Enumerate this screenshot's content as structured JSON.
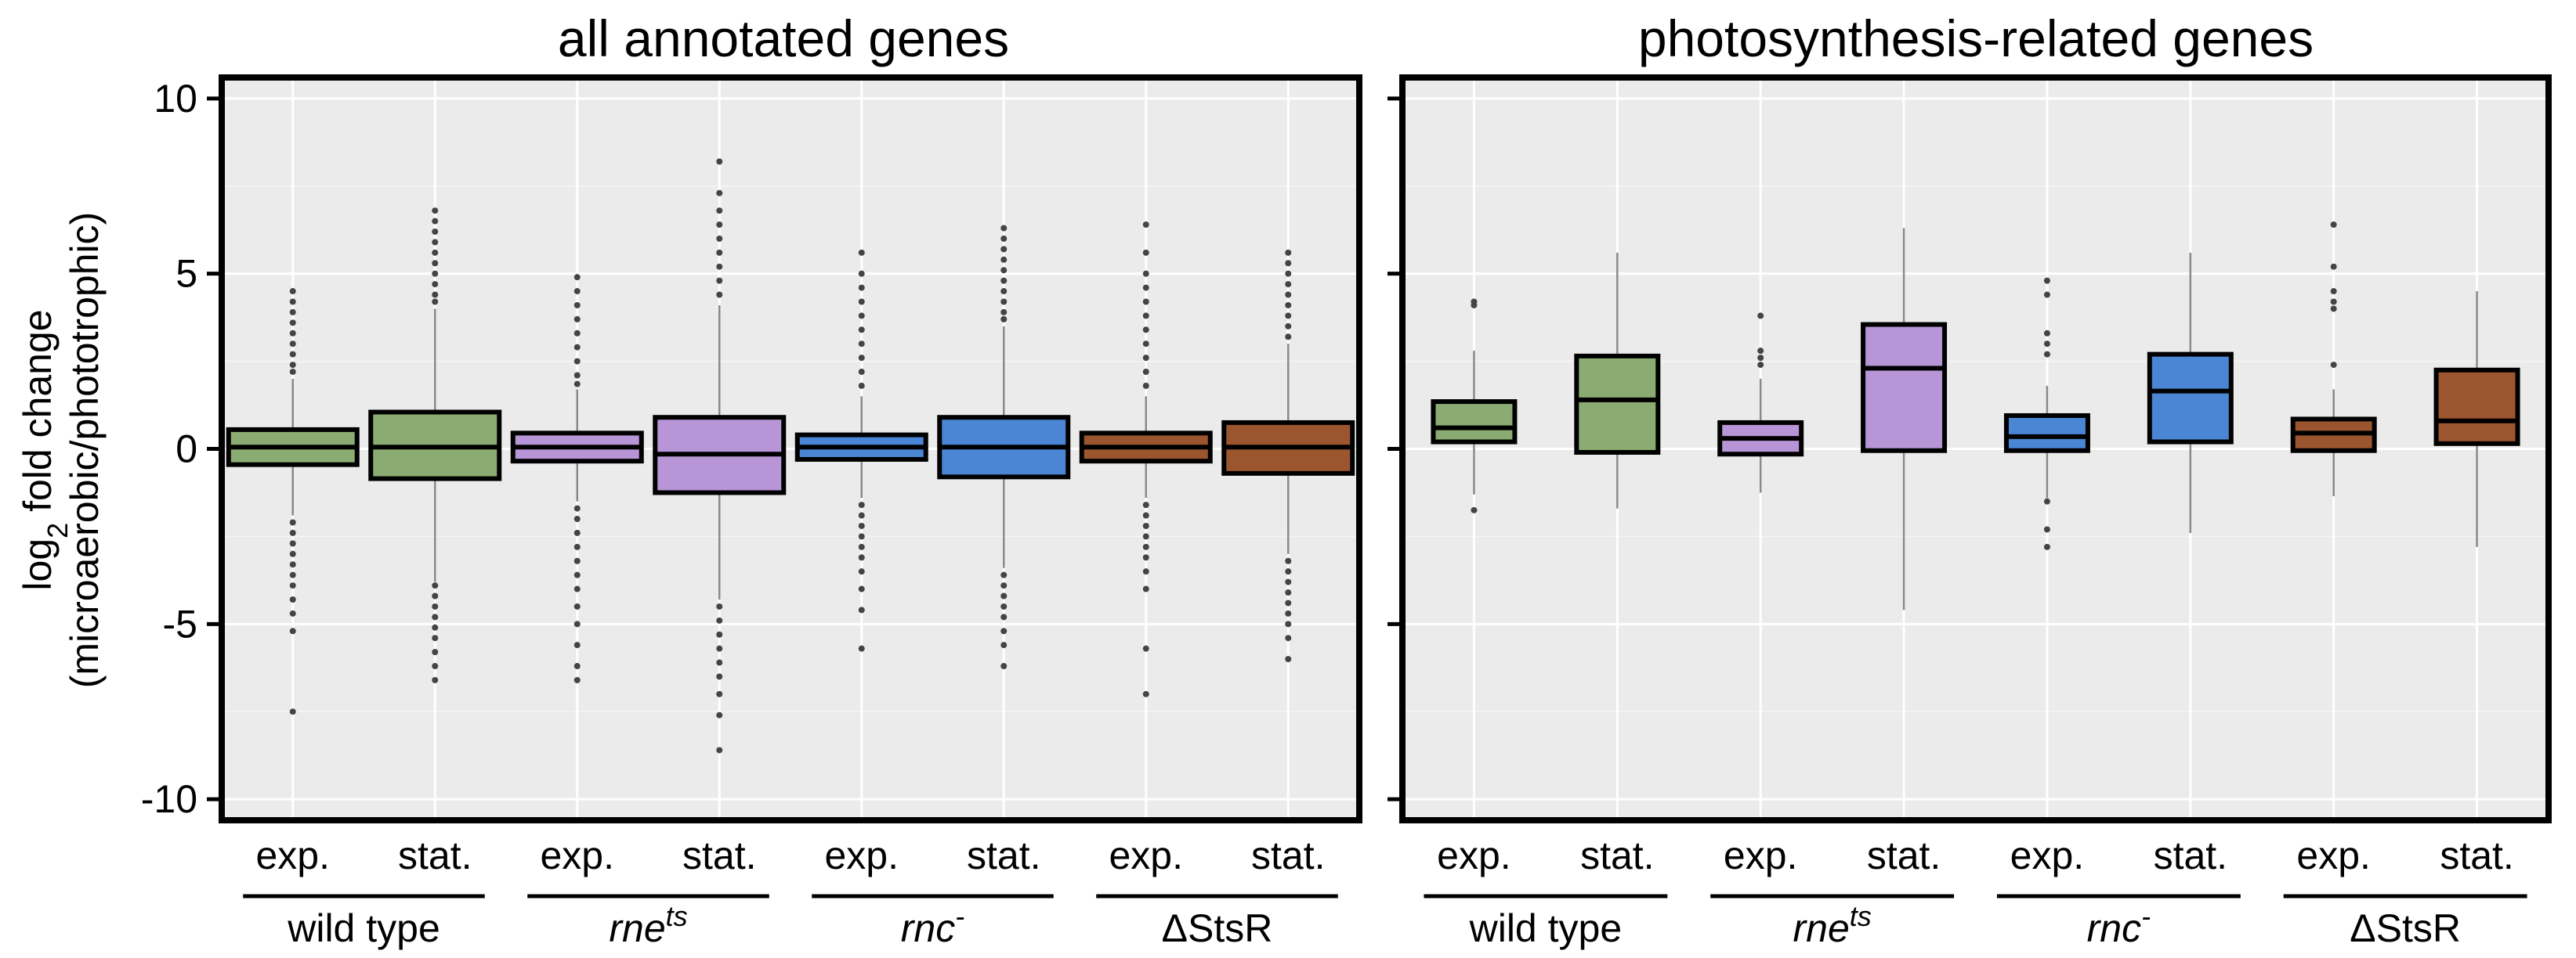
{
  "chart_data": [
    {
      "type": "box",
      "title": "all annotated genes",
      "ylabel_line1": "log",
      "ylabel_sub": "2",
      "ylabel_line1_rest": " fold change",
      "ylabel_line2": "(microaerobic/phototrophic)",
      "ylim": [
        -10.6,
        10.6
      ],
      "yticks": [
        10,
        5,
        0,
        -5,
        -10
      ],
      "ytick_labels": [
        "10",
        "5",
        "0",
        "-5",
        "-10"
      ],
      "groups": [
        {
          "name": "wild type",
          "base": "wild type",
          "sup": ""
        },
        {
          "name": "rne-ts",
          "base": "rne",
          "sup": "ts"
        },
        {
          "name": "rnc-",
          "base": "rnc",
          "sup": "-"
        },
        {
          "name": "ΔStsR",
          "base": "ΔStsR",
          "sup": ""
        }
      ],
      "categories": [
        "exp.",
        "stat.",
        "exp.",
        "stat.",
        "exp.",
        "stat.",
        "exp.",
        "stat."
      ],
      "boxes": [
        {
          "group": 0,
          "category": "exp.",
          "q1": -0.45,
          "median": 0.05,
          "q3": 0.55,
          "whisker_low": -1.9,
          "whisker_high": 2.0,
          "outliers": [
            4.5,
            4.2,
            3.9,
            3.6,
            3.3,
            3.0,
            2.7,
            2.4,
            2.2,
            -2.1,
            -2.4,
            -2.7,
            -3.0,
            -3.3,
            -3.6,
            -3.9,
            -4.3,
            -4.7,
            -5.2,
            -7.5
          ]
        },
        {
          "group": 0,
          "category": "stat.",
          "q1": -0.85,
          "median": 0.05,
          "q3": 1.05,
          "whisker_low": -3.8,
          "whisker_high": 4.0,
          "outliers": [
            6.8,
            6.5,
            6.2,
            5.9,
            5.6,
            5.3,
            5.0,
            4.7,
            4.4,
            4.2,
            -3.9,
            -4.2,
            -4.5,
            -4.8,
            -5.1,
            -5.4,
            -5.8,
            -6.2,
            -6.6
          ]
        },
        {
          "group": 1,
          "category": "exp.",
          "q1": -0.35,
          "median": 0.05,
          "q3": 0.45,
          "whisker_low": -1.5,
          "whisker_high": 1.7,
          "outliers": [
            4.9,
            4.5,
            4.1,
            3.7,
            3.3,
            2.9,
            2.5,
            2.1,
            1.85,
            -1.7,
            -2.0,
            -2.4,
            -2.8,
            -3.2,
            -3.6,
            -4.0,
            -4.5,
            -5.0,
            -5.6,
            -6.2,
            -6.6
          ]
        },
        {
          "group": 1,
          "category": "stat.",
          "q1": -1.25,
          "median": -0.15,
          "q3": 0.9,
          "whisker_low": -4.3,
          "whisker_high": 4.1,
          "outliers": [
            8.2,
            7.3,
            6.8,
            6.4,
            6.0,
            5.6,
            5.2,
            4.8,
            4.4,
            -4.5,
            -4.9,
            -5.3,
            -5.7,
            -6.1,
            -6.5,
            -7.0,
            -7.6,
            -8.6
          ]
        },
        {
          "group": 2,
          "category": "exp.",
          "q1": -0.3,
          "median": 0.05,
          "q3": 0.4,
          "whisker_low": -1.4,
          "whisker_high": 1.5,
          "outliers": [
            5.6,
            5.0,
            4.6,
            4.2,
            3.8,
            3.4,
            3.0,
            2.6,
            2.2,
            1.8,
            -1.6,
            -1.9,
            -2.2,
            -2.5,
            -2.8,
            -3.1,
            -3.5,
            -4.0,
            -4.6,
            -5.7
          ]
        },
        {
          "group": 2,
          "category": "stat.",
          "q1": -0.8,
          "median": 0.05,
          "q3": 0.9,
          "whisker_low": -3.4,
          "whisker_high": 3.5,
          "outliers": [
            6.3,
            6.0,
            5.7,
            5.4,
            5.1,
            4.8,
            4.5,
            4.2,
            3.9,
            3.7,
            -3.6,
            -3.9,
            -4.2,
            -4.5,
            -4.8,
            -5.2,
            -5.6,
            -6.2
          ]
        },
        {
          "group": 3,
          "category": "exp.",
          "q1": -0.35,
          "median": 0.05,
          "q3": 0.45,
          "whisker_low": -1.4,
          "whisker_high": 1.5,
          "outliers": [
            6.4,
            5.6,
            5.0,
            4.6,
            4.2,
            3.8,
            3.4,
            3.0,
            2.6,
            2.2,
            1.8,
            -1.6,
            -1.9,
            -2.2,
            -2.5,
            -2.8,
            -3.1,
            -3.5,
            -4.0,
            -5.7,
            -7.0
          ]
        },
        {
          "group": 3,
          "category": "stat.",
          "q1": -0.7,
          "median": 0.05,
          "q3": 0.75,
          "whisker_low": -3.0,
          "whisker_high": 3.0,
          "outliers": [
            5.6,
            5.3,
            5.0,
            4.7,
            4.4,
            4.1,
            3.8,
            3.5,
            3.2,
            -3.2,
            -3.5,
            -3.8,
            -4.1,
            -4.4,
            -4.7,
            -5.0,
            -5.4,
            -6.0
          ]
        }
      ]
    },
    {
      "type": "box",
      "title": "photosynthesis-related genes",
      "ylim": [
        -10.6,
        10.6
      ],
      "yticks": [
        10,
        5,
        0,
        -5,
        -10
      ],
      "groups": [
        {
          "name": "wild type",
          "base": "wild type",
          "sup": ""
        },
        {
          "name": "rne-ts",
          "base": "rne",
          "sup": "ts"
        },
        {
          "name": "rnc-",
          "base": "rnc",
          "sup": "-"
        },
        {
          "name": "ΔStsR",
          "base": "ΔStsR",
          "sup": ""
        }
      ],
      "categories": [
        "exp.",
        "stat.",
        "exp.",
        "stat.",
        "exp.",
        "stat.",
        "exp.",
        "stat."
      ],
      "boxes": [
        {
          "group": 0,
          "category": "exp.",
          "q1": 0.2,
          "median": 0.6,
          "q3": 1.35,
          "whisker_low": -1.3,
          "whisker_high": 2.8,
          "outliers": [
            4.2,
            4.1,
            -1.75
          ]
        },
        {
          "group": 0,
          "category": "stat.",
          "q1": -0.1,
          "median": 1.4,
          "q3": 2.65,
          "whisker_low": -1.7,
          "whisker_high": 5.6,
          "outliers": []
        },
        {
          "group": 1,
          "category": "exp.",
          "q1": -0.15,
          "median": 0.3,
          "q3": 0.75,
          "whisker_low": -1.25,
          "whisker_high": 2.0,
          "outliers": [
            3.8,
            2.8,
            2.6,
            2.4
          ]
        },
        {
          "group": 1,
          "category": "stat.",
          "q1": -0.05,
          "median": 2.3,
          "q3": 3.55,
          "whisker_low": -4.6,
          "whisker_high": 6.3,
          "outliers": []
        },
        {
          "group": 2,
          "category": "exp.",
          "q1": -0.05,
          "median": 0.35,
          "q3": 0.95,
          "whisker_low": -1.4,
          "whisker_high": 1.8,
          "outliers": [
            4.8,
            4.4,
            3.3,
            3.0,
            2.7,
            -1.5,
            -2.3,
            -2.8
          ]
        },
        {
          "group": 2,
          "category": "stat.",
          "q1": 0.2,
          "median": 1.65,
          "q3": 2.7,
          "whisker_low": -2.4,
          "whisker_high": 5.6,
          "outliers": []
        },
        {
          "group": 3,
          "category": "exp.",
          "q1": -0.05,
          "median": 0.45,
          "q3": 0.85,
          "whisker_low": -1.35,
          "whisker_high": 1.7,
          "outliers": [
            6.4,
            5.2,
            4.5,
            4.2,
            4.0,
            2.4
          ]
        },
        {
          "group": 3,
          "category": "stat.",
          "q1": 0.15,
          "median": 0.8,
          "q3": 2.25,
          "whisker_low": -2.8,
          "whisker_high": 4.5,
          "outliers": []
        }
      ]
    }
  ],
  "colors": {
    "group_fills": [
      "#8aab71",
      "#b895d6",
      "#4a86d4",
      "#9b5630"
    ],
    "panel_background": "#ebebeb",
    "grid": "#ffffff",
    "outlier": "#444444"
  }
}
